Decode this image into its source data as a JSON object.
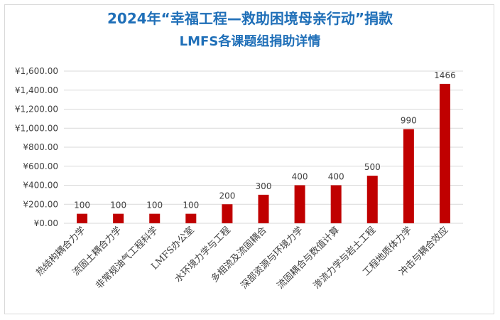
{
  "chart_data": {
    "type": "bar",
    "title_line1": "2024年“幸福工程—救助困境母亲行动”捐款",
    "title_line2": "LMFS各课题组捐助详情",
    "categories": [
      "热结构耦合力学",
      "流固土耦合力学",
      "非常规油气工程科学",
      "LMFS办公室",
      "水环境力学与工程",
      "多相流及流固耦合",
      "深部资源与环境力学",
      "流固耦合与数值计算",
      "渗流力学与岩土工程",
      "工程地质体力学",
      "冲击与耦合效应"
    ],
    "values": [
      100,
      100,
      100,
      100,
      200,
      300,
      400,
      400,
      500,
      990,
      1466
    ],
    "ylim": [
      0,
      1600
    ],
    "yticks": [
      0,
      200,
      400,
      600,
      800,
      1000,
      1200,
      1400,
      1600
    ],
    "ytick_labels": [
      "¥0.00",
      "¥200.00",
      "¥400.00",
      "¥600.00",
      "¥800.00",
      "¥1,000.00",
      "¥1,200.00",
      "¥1,400.00",
      "¥1,600.00"
    ],
    "grid": true,
    "legend": "none",
    "bar_color": "#c00000",
    "grid_color": "#d9d9d9"
  }
}
